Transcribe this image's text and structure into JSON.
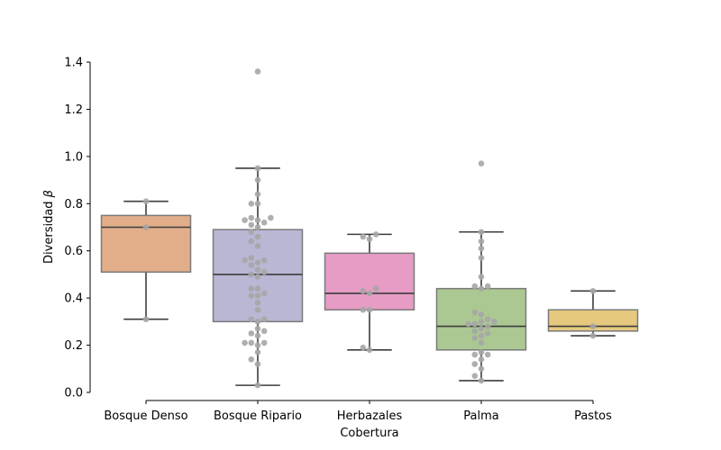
{
  "chart_data": {
    "type": "boxplot",
    "xlabel": "Cobertura",
    "ylabel_text": "Diversidad ",
    "ylabel_symbol": "β",
    "ylim": [
      0,
      1.4
    ],
    "yticks": [
      "0.0",
      "0.2",
      "0.4",
      "0.6",
      "0.8",
      "1.0",
      "1.2",
      "1.4"
    ],
    "grid": false,
    "categories": [
      "Bosque Denso",
      "Bosque Ripario",
      "Herbazales",
      "Palma",
      "Pastos"
    ],
    "colors": {
      "Bosque Denso": "#e2ae8a",
      "Bosque Ripario": "#b9b7d4",
      "Herbazales": "#e69cc5",
      "Palma": "#abc892",
      "Pastos": "#e6c97f",
      "points": "#a6a6a6",
      "lines": "#3c3c3c"
    },
    "boxes": [
      {
        "category": "Bosque Denso",
        "whisker_low": 0.31,
        "q1": 0.51,
        "median": 0.7,
        "q3": 0.75,
        "whisker_high": 0.81,
        "outliers": []
      },
      {
        "category": "Bosque Ripario",
        "whisker_low": 0.03,
        "q1": 0.3,
        "median": 0.5,
        "q3": 0.69,
        "whisker_high": 0.95,
        "outliers": [
          1.36
        ]
      },
      {
        "category": "Herbazales",
        "whisker_low": 0.18,
        "q1": 0.35,
        "median": 0.42,
        "q3": 0.59,
        "whisker_high": 0.67,
        "outliers": []
      },
      {
        "category": "Palma",
        "whisker_low": 0.05,
        "q1": 0.18,
        "median": 0.28,
        "q3": 0.44,
        "whisker_high": 0.68,
        "outliers": [
          0.97
        ]
      },
      {
        "category": "Pastos",
        "whisker_low": 0.24,
        "q1": 0.26,
        "median": 0.28,
        "q3": 0.35,
        "whisker_high": 0.43,
        "outliers": []
      }
    ],
    "points": [
      {
        "category": "Bosque Denso",
        "values": [
          0.81,
          0.7,
          0.31
        ]
      },
      {
        "category": "Bosque Ripario",
        "values": [
          1.36,
          0.95,
          0.9,
          0.84,
          0.8,
          0.8,
          0.74,
          0.74,
          0.73,
          0.73,
          0.72,
          0.71,
          0.7,
          0.68,
          0.66,
          0.64,
          0.62,
          0.57,
          0.56,
          0.56,
          0.55,
          0.54,
          0.52,
          0.51,
          0.5,
          0.49,
          0.44,
          0.44,
          0.42,
          0.41,
          0.41,
          0.38,
          0.35,
          0.31,
          0.31,
          0.3,
          0.27,
          0.26,
          0.25,
          0.24,
          0.21,
          0.21,
          0.21,
          0.2,
          0.17,
          0.14,
          0.12,
          0.03
        ]
      },
      {
        "category": "Herbazales",
        "values": [
          0.67,
          0.66,
          0.65,
          0.44,
          0.43,
          0.42,
          0.35,
          0.35,
          0.19,
          0.18
        ]
      },
      {
        "category": "Palma",
        "values": [
          0.97,
          0.68,
          0.64,
          0.61,
          0.57,
          0.49,
          0.45,
          0.45,
          0.44,
          0.34,
          0.33,
          0.31,
          0.3,
          0.3,
          0.29,
          0.29,
          0.28,
          0.27,
          0.26,
          0.25,
          0.24,
          0.23,
          0.21,
          0.17,
          0.16,
          0.16,
          0.14,
          0.12,
          0.1,
          0.07,
          0.05
        ]
      },
      {
        "category": "Pastos",
        "values": [
          0.43,
          0.28,
          0.24
        ]
      }
    ]
  }
}
